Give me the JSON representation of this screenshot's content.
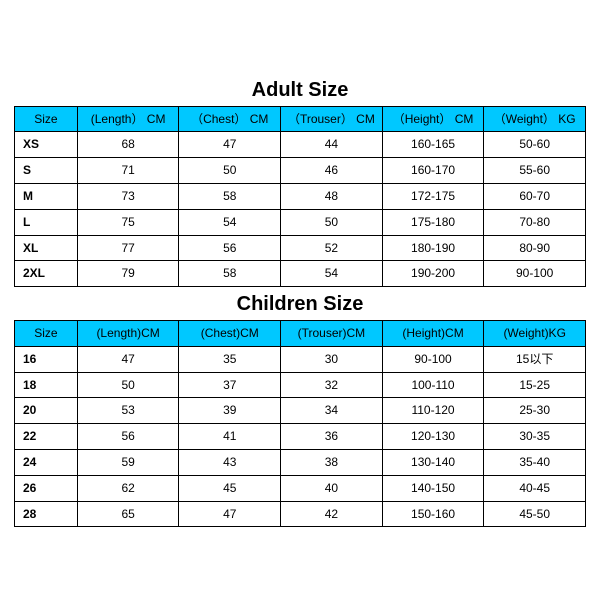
{
  "styles": {
    "header_bg": "#00c8ff",
    "header_text": "#000000",
    "title_font_size": 20,
    "cell_font_size": 12,
    "border_color": "#000000",
    "background": "#ffffff"
  },
  "adult": {
    "title": "Adult Size",
    "columns": [
      "Size",
      "(Length） CM",
      "（Chest） CM",
      "（Trouser） CM",
      "（Height） CM",
      "（Weight） KG"
    ],
    "rows": [
      [
        "XS",
        "68",
        "47",
        "44",
        "160-165",
        "50-60"
      ],
      [
        "S",
        "71",
        "50",
        "46",
        "160-170",
        "55-60"
      ],
      [
        "M",
        "73",
        "58",
        "48",
        "172-175",
        "60-70"
      ],
      [
        "L",
        "75",
        "54",
        "50",
        "175-180",
        "70-80"
      ],
      [
        "XL",
        "77",
        "56",
        "52",
        "180-190",
        "80-90"
      ],
      [
        "2XL",
        "79",
        "58",
        "54",
        "190-200",
        "90-100"
      ]
    ]
  },
  "children": {
    "title": "Children Size",
    "columns": [
      "Size",
      "(Length)CM",
      "(Chest)CM",
      "(Trouser)CM",
      "(Height)CM",
      "(Weight)KG"
    ],
    "rows": [
      [
        "16",
        "47",
        "35",
        "30",
        "90-100",
        "15以下"
      ],
      [
        "18",
        "50",
        "37",
        "32",
        "100-110",
        "15-25"
      ],
      [
        "20",
        "53",
        "39",
        "34",
        "110-120",
        "25-30"
      ],
      [
        "22",
        "56",
        "41",
        "36",
        "120-130",
        "30-35"
      ],
      [
        "24",
        "59",
        "43",
        "38",
        "130-140",
        "35-40"
      ],
      [
        "26",
        "62",
        "45",
        "40",
        "140-150",
        "40-45"
      ],
      [
        "28",
        "65",
        "47",
        "42",
        "150-160",
        "45-50"
      ]
    ]
  }
}
